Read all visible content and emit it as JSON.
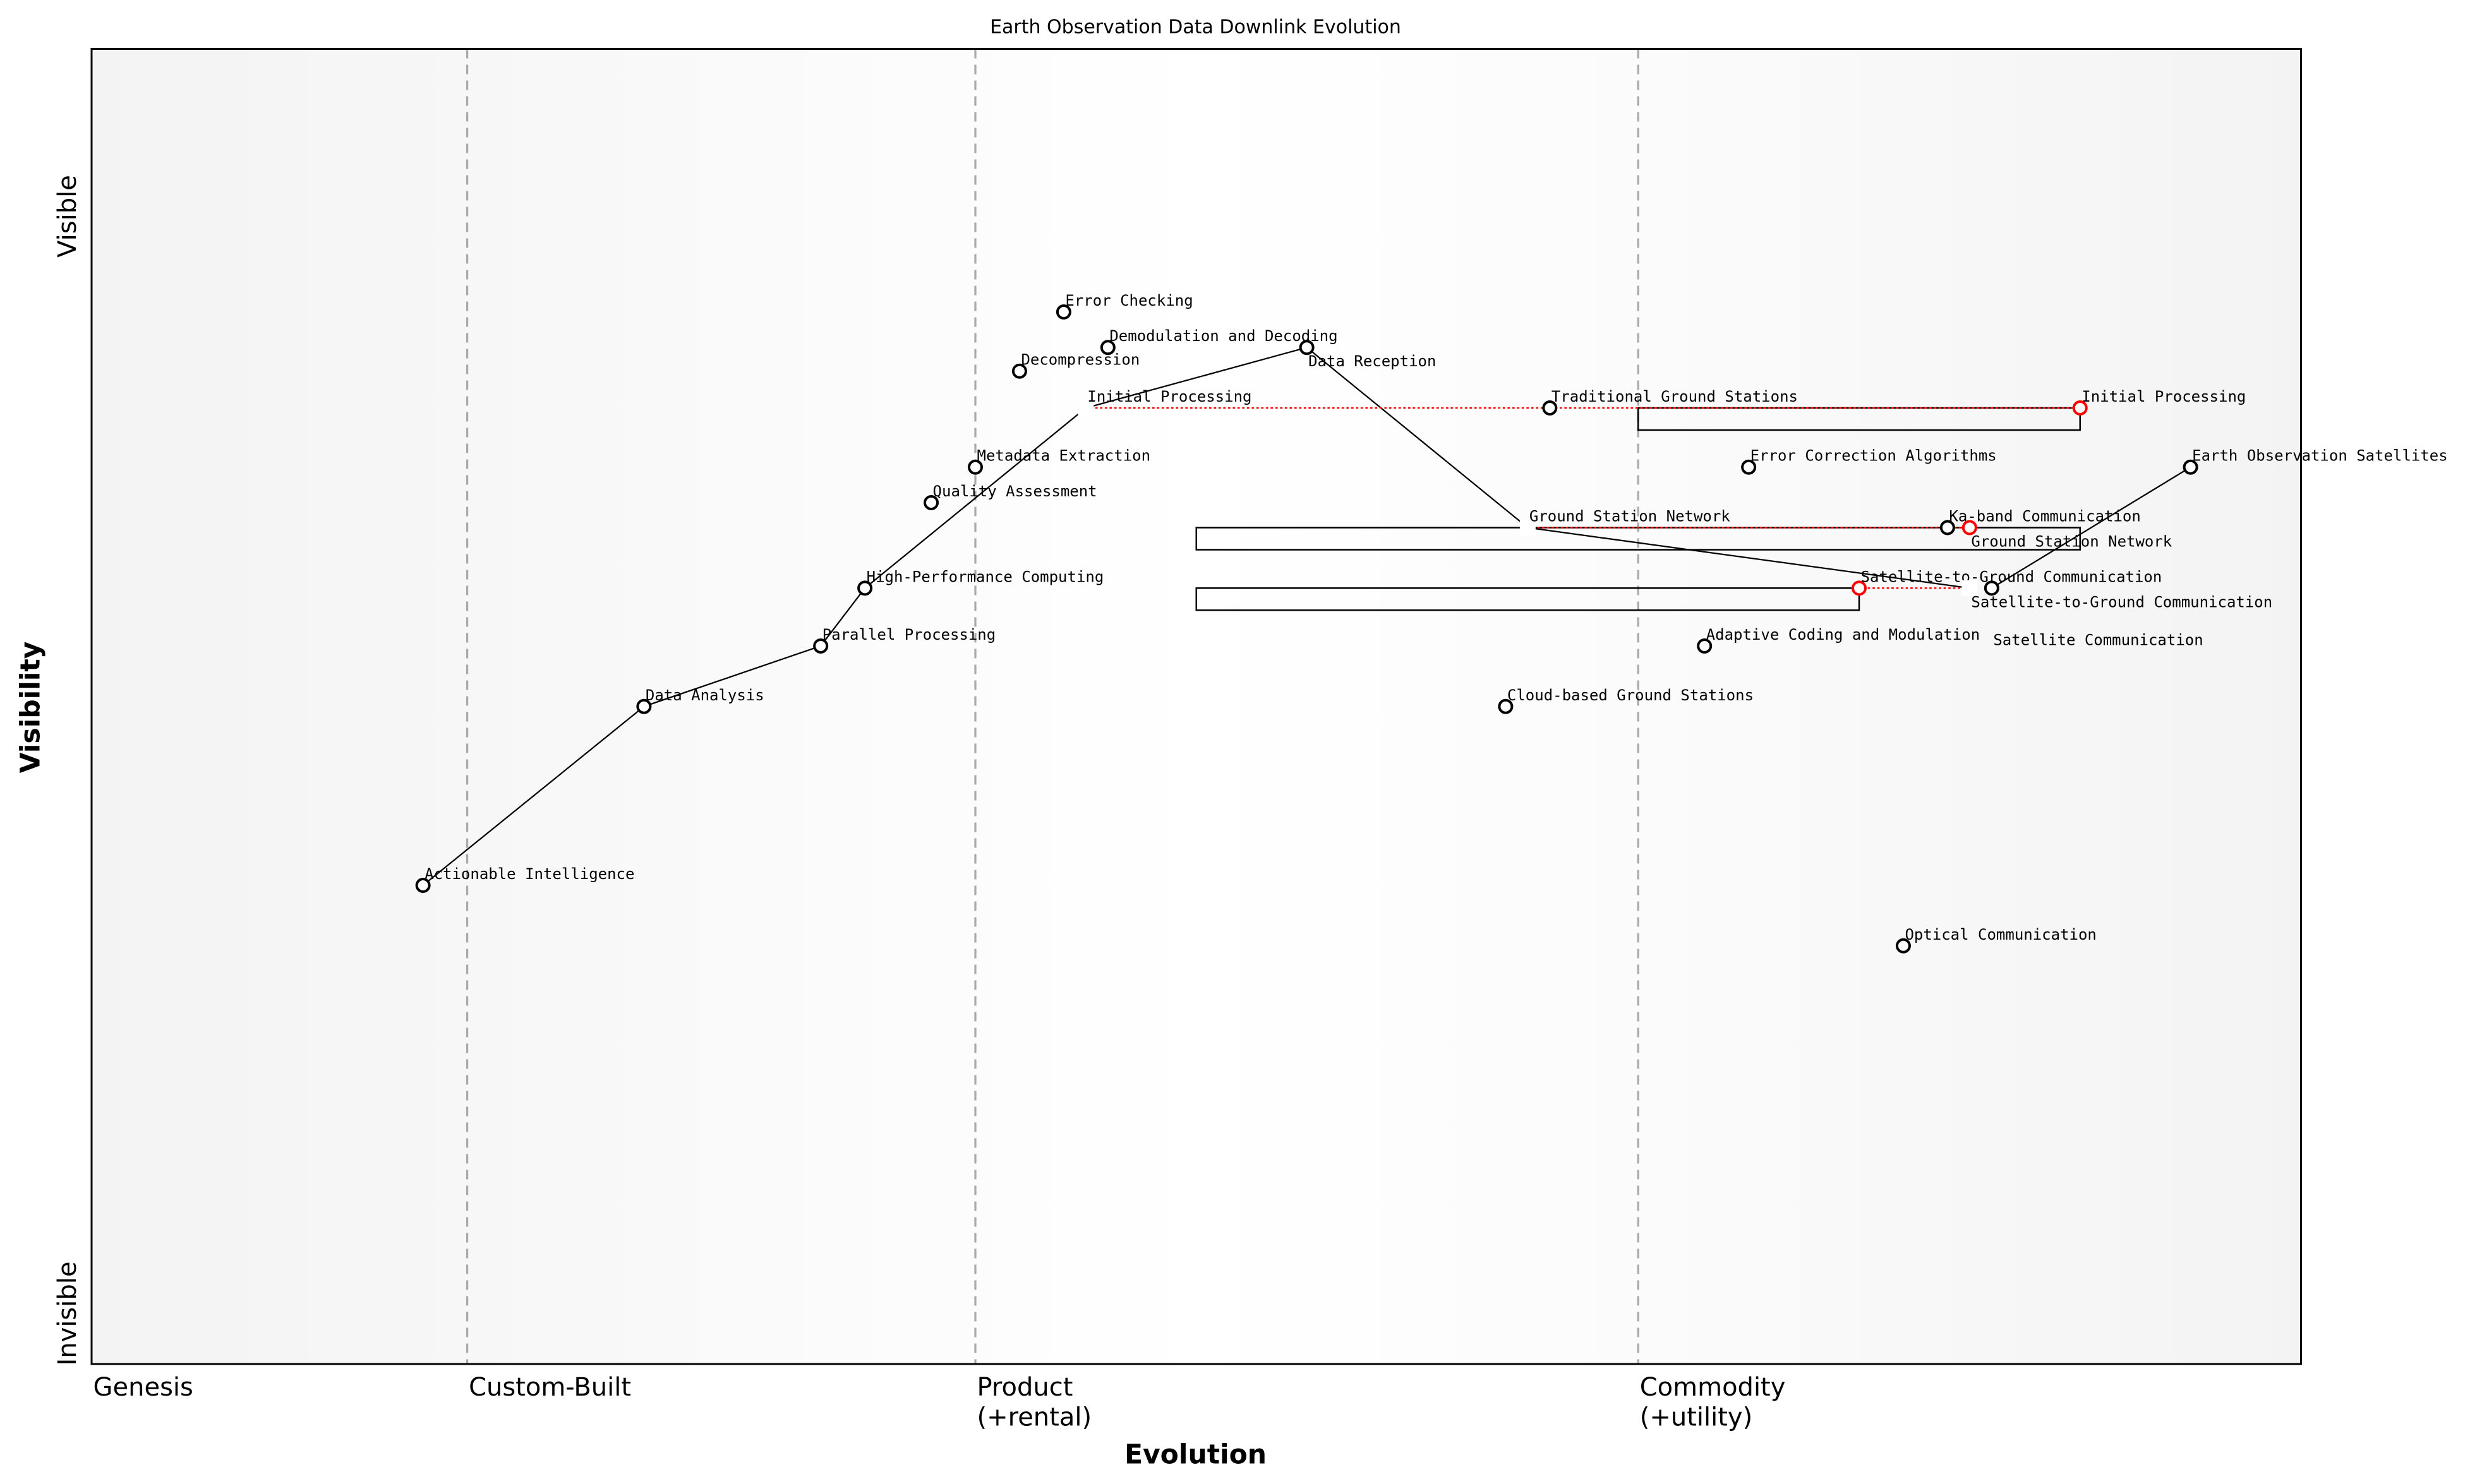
{
  "chart_data": {
    "type": "wardley-map",
    "title": "Earth Observation Data Downlink Evolution",
    "xlabel": "Evolution",
    "ylabel": "Visibility",
    "y_ticks": {
      "top": "Visible",
      "bottom": "Invisible"
    },
    "xlim": [
      0,
      1
    ],
    "ylim": [
      0,
      1
    ],
    "stages": [
      {
        "label": "Genesis",
        "evolution": 0.0
      },
      {
        "label": "Custom-Built",
        "evolution": 0.17
      },
      {
        "label": "Product\n(+rental)",
        "evolution": 0.4
      },
      {
        "label": "Commodity\n(+utility)",
        "evolution": 0.7
      }
    ],
    "components": [
      {
        "name": "Error Checking",
        "evolution": 0.44,
        "visibility": 0.8
      },
      {
        "name": "Demodulation and Decoding",
        "evolution": 0.46,
        "visibility": 0.773
      },
      {
        "name": "Data Reception",
        "evolution": 0.55,
        "visibility": 0.773
      },
      {
        "name": "Decompression",
        "evolution": 0.42,
        "visibility": 0.755
      },
      {
        "name": "Initial Processing",
        "evolution": 0.45,
        "visibility": 0.727,
        "hidden_marker": true
      },
      {
        "name": "Traditional Ground Stations",
        "evolution": 0.66,
        "visibility": 0.727
      },
      {
        "name": "Initial Processing",
        "evolution": 0.9,
        "visibility": 0.727,
        "evolved": true
      },
      {
        "name": "Metadata Extraction",
        "evolution": 0.4,
        "visibility": 0.682
      },
      {
        "name": "Error Correction Algorithms",
        "evolution": 0.75,
        "visibility": 0.682
      },
      {
        "name": "Earth Observation Satellites",
        "evolution": 0.95,
        "visibility": 0.682
      },
      {
        "name": "Quality Assessment",
        "evolution": 0.38,
        "visibility": 0.655
      },
      {
        "name": "Ground Station Network",
        "evolution": 0.65,
        "visibility": 0.636,
        "hidden_marker": true
      },
      {
        "name": "Ka-band Communication",
        "evolution": 0.84,
        "visibility": 0.636
      },
      {
        "name": "Ground Station Network",
        "evolution": 0.85,
        "visibility": 0.636,
        "evolved": true
      },
      {
        "name": "High-Performance Computing",
        "evolution": 0.35,
        "visibility": 0.59
      },
      {
        "name": "Satellite-to-Ground Communication",
        "evolution": 0.8,
        "visibility": 0.59,
        "evolved": true
      },
      {
        "name": "Satellite-to-Ground Communication",
        "evolution": 0.85,
        "visibility": 0.59,
        "hidden_marker": true
      },
      {
        "name": "Satellite Communication",
        "evolution": 0.86,
        "visibility": 0.59
      },
      {
        "name": "Parallel Processing",
        "evolution": 0.33,
        "visibility": 0.546
      },
      {
        "name": "Adaptive Coding and Modulation",
        "evolution": 0.73,
        "visibility": 0.546
      },
      {
        "name": "Data Analysis",
        "evolution": 0.25,
        "visibility": 0.5
      },
      {
        "name": "Cloud-based Ground Stations",
        "evolution": 0.64,
        "visibility": 0.5
      },
      {
        "name": "Actionable Intelligence",
        "evolution": 0.15,
        "visibility": 0.364
      },
      {
        "name": "Optical Communication",
        "evolution": 0.82,
        "visibility": 0.318
      }
    ],
    "links": [
      {
        "from": [
          0.15,
          0.364
        ],
        "to": [
          0.25,
          0.5
        ]
      },
      {
        "from": [
          0.25,
          0.5
        ],
        "to": [
          0.33,
          0.546
        ]
      },
      {
        "from": [
          0.33,
          0.546
        ],
        "to": [
          0.35,
          0.59
        ]
      },
      {
        "from": [
          0.35,
          0.59
        ],
        "to": [
          0.45,
          0.727
        ]
      },
      {
        "from": [
          0.45,
          0.727
        ],
        "to": [
          0.55,
          0.773
        ]
      },
      {
        "from": [
          0.55,
          0.773
        ],
        "to": [
          0.65,
          0.636
        ]
      },
      {
        "from": [
          0.65,
          0.636
        ],
        "to": [
          0.85,
          0.59
        ]
      },
      {
        "from": [
          0.86,
          0.59
        ],
        "to": [
          0.95,
          0.682
        ]
      }
    ],
    "evolutions": [
      {
        "from": 0.45,
        "to": 0.9,
        "visibility": 0.727
      },
      {
        "from": 0.65,
        "to": 0.85,
        "visibility": 0.636
      },
      {
        "from": 0.85,
        "to": 0.8,
        "visibility": 0.59
      }
    ],
    "pipelines": [
      {
        "start": 0.7,
        "end": 0.9,
        "visibility": 0.727
      },
      {
        "start": 0.5,
        "end": 0.9,
        "visibility": 0.636
      },
      {
        "start": 0.5,
        "end": 0.8,
        "visibility": 0.59
      }
    ],
    "colors": {
      "component": "#000000",
      "evolved": "#ff0000",
      "grid": "#aaaaaa"
    }
  }
}
